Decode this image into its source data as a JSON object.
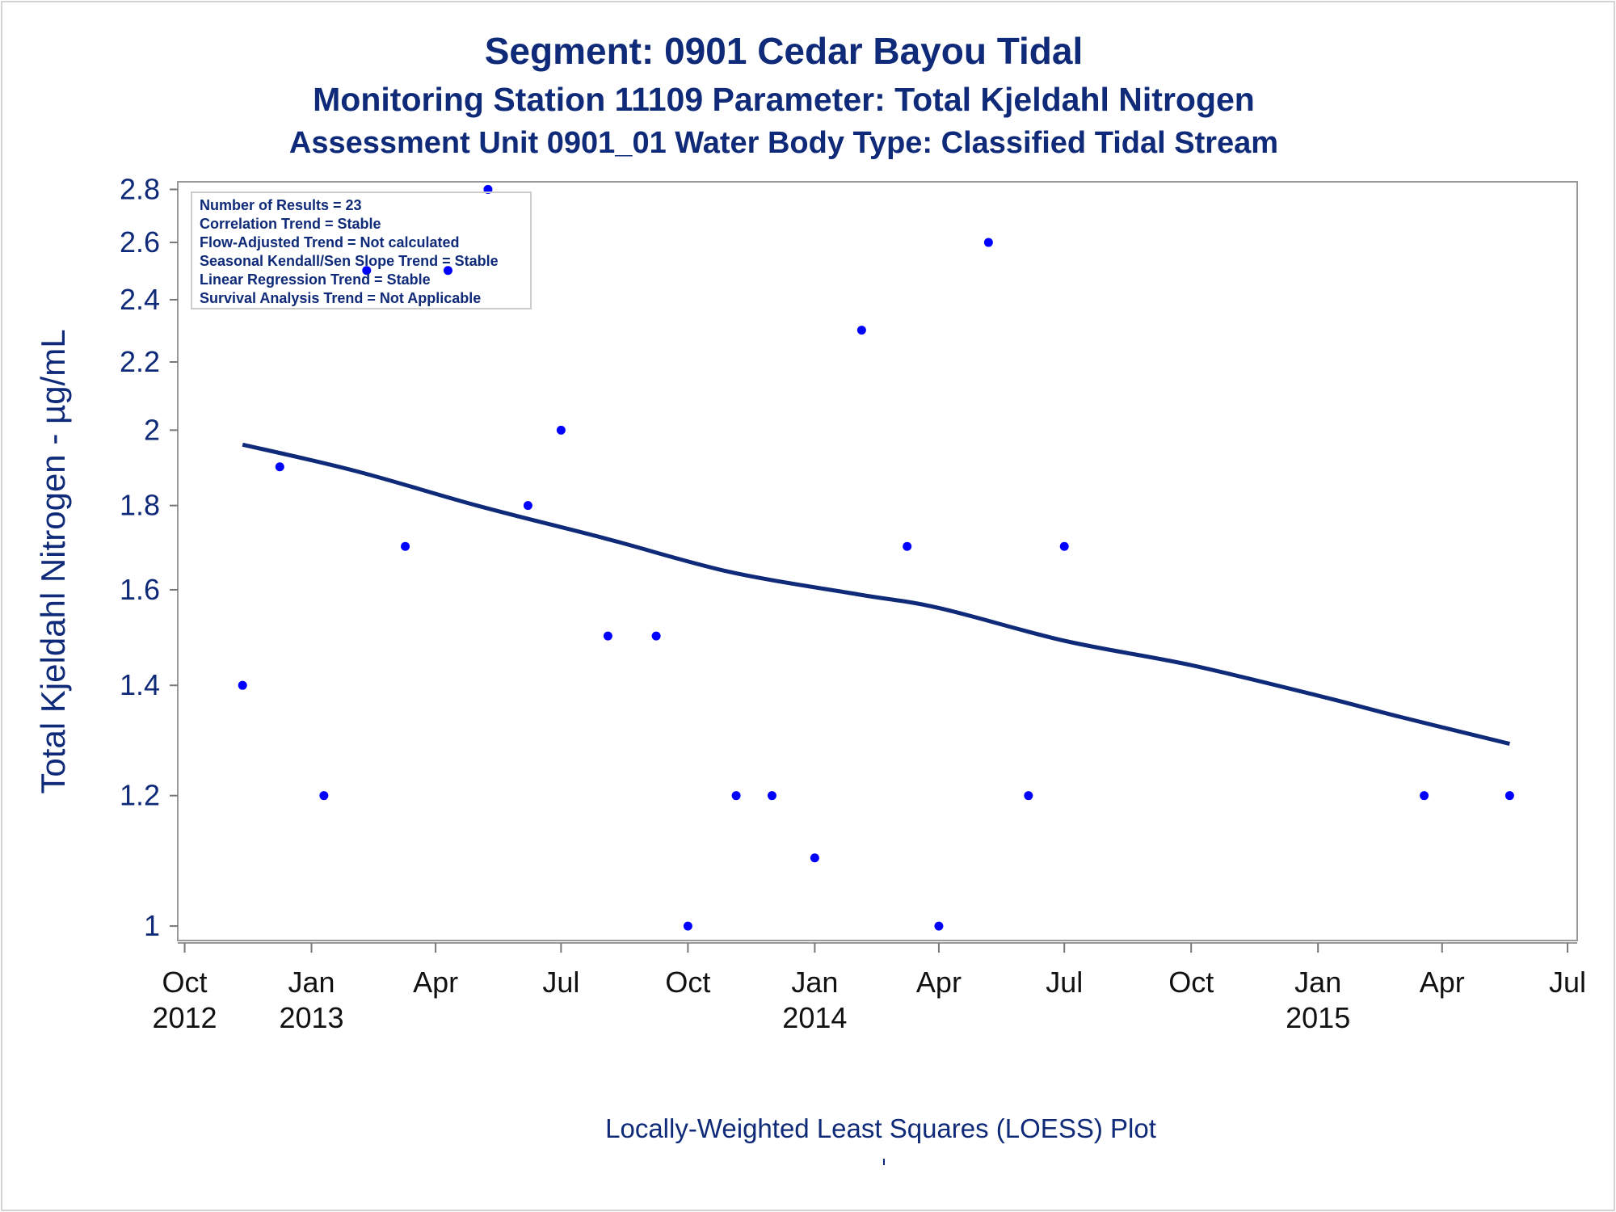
{
  "chart_data": {
    "type": "scatter",
    "title": "Segment: 0901  Cedar Bayou Tidal",
    "subtitle": "Monitoring Station 11109 Parameter: Total Kjeldahl Nitrogen",
    "subtitle2": "Assessment Unit 0901_01   Water Body Type: Classified Tidal Stream",
    "ylabel": "Total Kjeldahl Nitrogen -  µg/mL",
    "footnote": "Locally-Weighted Least Squares (LOESS) Plot",
    "yscale": "log",
    "ylim": [
      0.98,
      2.83
    ],
    "xlim": [
      "2012-09-26",
      "2015-07-08"
    ],
    "yticks": [
      "1",
      "1.2",
      "1.4",
      "1.6",
      "1.8",
      "2",
      "2.2",
      "2.4",
      "2.6",
      "2.8"
    ],
    "xticks": [
      {
        "date": "2012-10-01",
        "line1": "Oct",
        "line2": "2012"
      },
      {
        "date": "2013-01-01",
        "line1": "Jan",
        "line2": "2013"
      },
      {
        "date": "2013-04-01",
        "line1": "Apr",
        "line2": ""
      },
      {
        "date": "2013-07-01",
        "line1": "Jul",
        "line2": ""
      },
      {
        "date": "2013-10-01",
        "line1": "Oct",
        "line2": ""
      },
      {
        "date": "2014-01-01",
        "line1": "Jan",
        "line2": "2014"
      },
      {
        "date": "2014-04-01",
        "line1": "Apr",
        "line2": ""
      },
      {
        "date": "2014-07-01",
        "line1": "Jul",
        "line2": ""
      },
      {
        "date": "2014-10-01",
        "line1": "Oct",
        "line2": ""
      },
      {
        "date": "2015-01-01",
        "line1": "Jan",
        "line2": "2015"
      },
      {
        "date": "2015-04-01",
        "line1": "Apr",
        "line2": ""
      },
      {
        "date": "2015-07-01",
        "line1": "Jul",
        "line2": ""
      }
    ],
    "points": [
      {
        "x": "2012-11-12",
        "y": 1.4
      },
      {
        "x": "2012-12-09",
        "y": 1.9
      },
      {
        "x": "2013-01-10",
        "y": 1.2
      },
      {
        "x": "2013-02-10",
        "y": 2.5
      },
      {
        "x": "2013-03-10",
        "y": 1.7
      },
      {
        "x": "2013-04-10",
        "y": 2.5
      },
      {
        "x": "2013-05-09",
        "y": 2.8
      },
      {
        "x": "2013-06-07",
        "y": 1.8
      },
      {
        "x": "2013-07-01",
        "y": 2.0
      },
      {
        "x": "2013-08-04",
        "y": 1.5
      },
      {
        "x": "2013-09-08",
        "y": 1.5
      },
      {
        "x": "2013-10-01",
        "y": 1.0
      },
      {
        "x": "2013-11-05",
        "y": 1.2
      },
      {
        "x": "2013-12-01",
        "y": 1.2
      },
      {
        "x": "2014-01-01",
        "y": 1.1
      },
      {
        "x": "2014-02-04",
        "y": 2.3
      },
      {
        "x": "2014-03-09",
        "y": 1.7
      },
      {
        "x": "2014-04-01",
        "y": 1.0
      },
      {
        "x": "2014-05-07",
        "y": 2.6
      },
      {
        "x": "2014-06-05",
        "y": 1.2
      },
      {
        "x": "2014-07-01",
        "y": 1.7
      },
      {
        "x": "2015-03-19",
        "y": 1.2
      },
      {
        "x": "2015-05-20",
        "y": 1.2
      }
    ],
    "loess": [
      {
        "x": "2012-11-12",
        "y": 1.96
      },
      {
        "x": "2013-02-01",
        "y": 1.89
      },
      {
        "x": "2013-05-01",
        "y": 1.8
      },
      {
        "x": "2013-08-01",
        "y": 1.72
      },
      {
        "x": "2013-11-01",
        "y": 1.64
      },
      {
        "x": "2014-02-01",
        "y": 1.59
      },
      {
        "x": "2014-04-01",
        "y": 1.56
      },
      {
        "x": "2014-07-01",
        "y": 1.49
      },
      {
        "x": "2014-10-01",
        "y": 1.44
      },
      {
        "x": "2015-01-01",
        "y": 1.38
      },
      {
        "x": "2015-03-01",
        "y": 1.34
      },
      {
        "x": "2015-05-20",
        "y": 1.29
      }
    ],
    "inset": [
      "Number of Results = 23",
      "Correlation Trend = Stable",
      "Flow-Adjusted Trend = Not calculated",
      "Seasonal Kendall/Sen Slope Trend = Stable",
      "Linear Regression Trend = Stable",
      "Survival Analysis Trend = Not Applicable"
    ],
    "grid": false,
    "colors": {
      "points": "#0000ff",
      "line": "#0f2a78",
      "text": "#0f2a78",
      "axis": "#999999"
    }
  }
}
